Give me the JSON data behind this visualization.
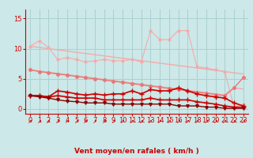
{
  "x": [
    0,
    1,
    2,
    3,
    4,
    5,
    6,
    7,
    8,
    9,
    10,
    11,
    12,
    13,
    14,
    15,
    16,
    17,
    18,
    19,
    20,
    21,
    22,
    23
  ],
  "line_light_straight1": [
    10.4,
    10.2,
    10.0,
    9.8,
    9.6,
    9.4,
    9.2,
    9.0,
    8.8,
    8.6,
    8.4,
    8.2,
    8.0,
    7.8,
    7.6,
    7.4,
    7.2,
    7.0,
    6.8,
    6.6,
    6.4,
    6.2,
    6.0,
    5.8
  ],
  "line_light_straight2": [
    6.5,
    6.3,
    6.1,
    5.9,
    5.7,
    5.5,
    5.3,
    5.1,
    4.9,
    4.7,
    4.5,
    4.3,
    4.1,
    3.9,
    3.7,
    3.5,
    3.3,
    3.1,
    2.9,
    2.7,
    2.5,
    2.3,
    3.5,
    3.3
  ],
  "line_light_wiggly": [
    10.4,
    11.3,
    10.2,
    8.2,
    8.5,
    8.2,
    7.8,
    8.0,
    8.2,
    8.0,
    8.0,
    8.2,
    7.8,
    13.0,
    11.5,
    11.5,
    13.0,
    13.0,
    7.0,
    6.8,
    6.5,
    6.2,
    0.3,
    0.8
  ],
  "line_med_straight": [
    6.5,
    6.2,
    6.0,
    5.8,
    5.6,
    5.4,
    5.2,
    5.0,
    4.8,
    4.6,
    4.4,
    4.2,
    4.0,
    3.8,
    3.6,
    3.4,
    3.2,
    3.0,
    2.8,
    2.6,
    2.4,
    2.2,
    3.5,
    5.2
  ],
  "line_dark_wiggly": [
    2.2,
    2.2,
    2.0,
    3.0,
    2.8,
    2.5,
    2.3,
    2.5,
    2.3,
    2.5,
    2.5,
    3.0,
    2.5,
    3.2,
    3.0,
    3.0,
    3.5,
    3.0,
    2.5,
    2.2,
    2.0,
    1.8,
    1.0,
    0.5
  ],
  "line_dark_straight1": [
    2.2,
    2.2,
    2.0,
    2.2,
    2.0,
    1.8,
    1.8,
    1.8,
    1.5,
    1.5,
    1.5,
    1.5,
    1.5,
    1.8,
    1.5,
    1.5,
    1.5,
    1.5,
    1.2,
    1.0,
    0.8,
    0.5,
    0.3,
    0.3
  ],
  "line_dark_straight2": [
    2.2,
    2.0,
    1.8,
    1.5,
    1.3,
    1.2,
    1.0,
    1.0,
    1.0,
    0.8,
    0.8,
    0.8,
    0.8,
    0.8,
    0.8,
    0.8,
    0.5,
    0.5,
    0.5,
    0.3,
    0.3,
    0.1,
    0.1,
    0.1
  ],
  "wind_dirs": [
    "SW",
    "N",
    "NW",
    "W",
    "NW",
    "NW",
    "NW",
    "NW",
    "NW",
    "N",
    "NW",
    "N",
    "NW",
    "NW",
    "N",
    "NW",
    "NW",
    "NW",
    "NW",
    "W",
    "NW",
    "W",
    "NW",
    "N"
  ],
  "bg_color": "#cce8e8",
  "grid_color": "#aad0d0",
  "color_light": "#f5aaaa",
  "color_med": "#e87878",
  "color_dark": "#cc0000",
  "color_darkest": "#880000",
  "xlabel": "Vent moyen/en rafales ( km/h )",
  "ylabel_ticks": [
    0,
    5,
    10,
    15
  ],
  "xlim": [
    -0.5,
    23.5
  ],
  "ylim": [
    -0.8,
    16.5
  ]
}
